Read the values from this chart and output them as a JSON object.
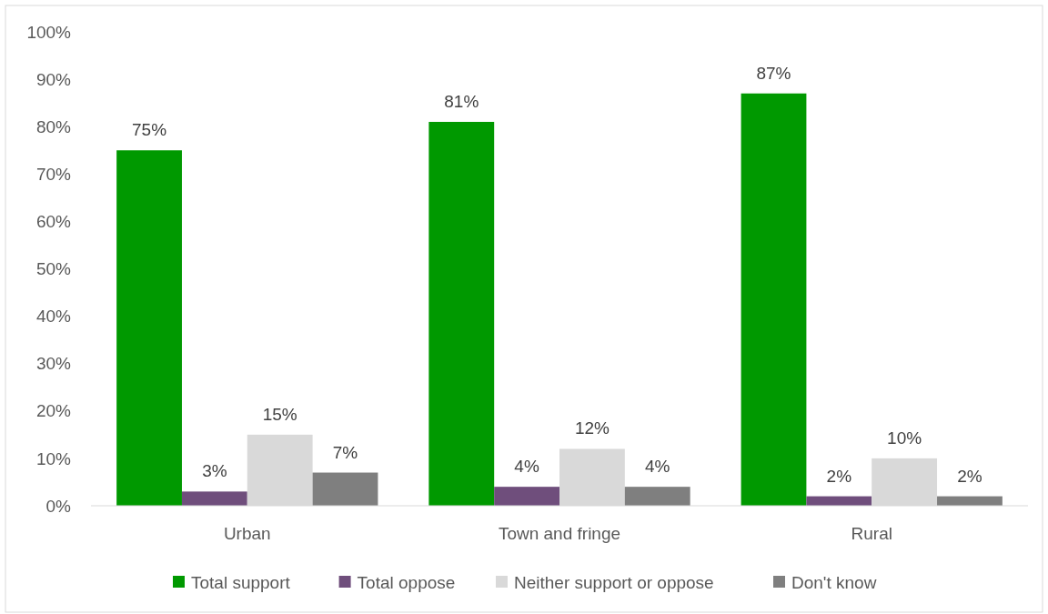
{
  "chart_data": {
    "type": "bar",
    "categories": [
      "Urban",
      "Town and fringe",
      "Rural"
    ],
    "series": [
      {
        "name": "Total support",
        "color": "#009900",
        "values": [
          75,
          81,
          87
        ],
        "value_labels": [
          "75%",
          "81%",
          "87%"
        ]
      },
      {
        "name": "Total oppose",
        "color": "#6f4e7c",
        "values": [
          3,
          4,
          2
        ],
        "value_labels": [
          "3%",
          "4%",
          "2%"
        ]
      },
      {
        "name": "Neither support or oppose",
        "color": "#d9d9d9",
        "values": [
          15,
          12,
          10
        ],
        "value_labels": [
          "15%",
          "12%",
          "10%"
        ]
      },
      {
        "name": "Don't know",
        "color": "#7f7f7f",
        "values": [
          7,
          4,
          2
        ],
        "value_labels": [
          "7%",
          "4%",
          "2%"
        ]
      }
    ],
    "ylim": [
      0,
      100
    ],
    "yticks": [
      {
        "value": 0,
        "label": "0%"
      },
      {
        "value": 10,
        "label": "10%"
      },
      {
        "value": 20,
        "label": "20%"
      },
      {
        "value": 30,
        "label": "30%"
      },
      {
        "value": 40,
        "label": "40%"
      },
      {
        "value": 50,
        "label": "50%"
      },
      {
        "value": 60,
        "label": "60%"
      },
      {
        "value": 70,
        "label": "70%"
      },
      {
        "value": 80,
        "label": "80%"
      },
      {
        "value": 90,
        "label": "90%"
      },
      {
        "value": 100,
        "label": "100%"
      }
    ],
    "legend": "bottom"
  }
}
